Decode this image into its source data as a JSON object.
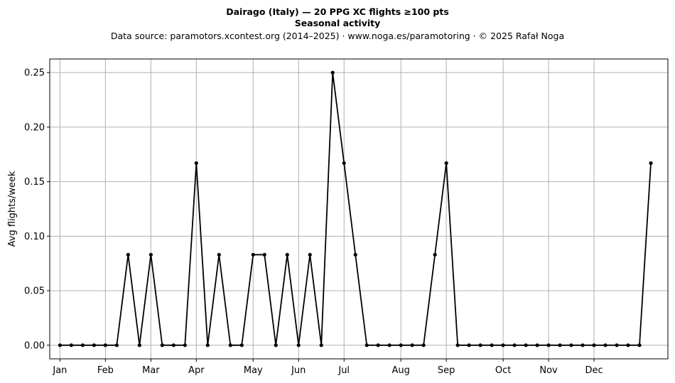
{
  "chart_data": {
    "type": "line",
    "title": "Dairago (Italy)  —  20 PPG XC flights ≥100 pts",
    "subtitle": "Seasonal activity",
    "source_line": "Data source: paramotors.xcontest.org (2014–2025)  ·  www.noga.es/paramotoring  ·  © 2025 Rafał Noga",
    "xlabel": "",
    "ylabel": "Avg flights/week",
    "xlim": [
      -0.9,
      53.5
    ],
    "ylim": [
      -0.0125,
      0.2625
    ],
    "grid": true,
    "x_ticks": [
      {
        "label": "Jan",
        "x": 0
      },
      {
        "label": "Feb",
        "x": 4
      },
      {
        "label": "Mar",
        "x": 8
      },
      {
        "label": "Apr",
        "x": 12
      },
      {
        "label": "May",
        "x": 17
      },
      {
        "label": "Jun",
        "x": 21
      },
      {
        "label": "Jul",
        "x": 25
      },
      {
        "label": "Aug",
        "x": 30
      },
      {
        "label": "Sep",
        "x": 34
      },
      {
        "label": "Oct",
        "x": 39
      },
      {
        "label": "Nov",
        "x": 43
      },
      {
        "label": "Dec",
        "x": 47
      }
    ],
    "y_ticks": [
      {
        "label": "0.00",
        "y": 0
      },
      {
        "label": "0.05",
        "y": 0.05
      },
      {
        "label": "0.10",
        "y": 0.1
      },
      {
        "label": "0.15",
        "y": 0.15
      },
      {
        "label": "0.20",
        "y": 0.2
      },
      {
        "label": "0.25",
        "y": 0.25
      }
    ],
    "series": [
      {
        "color": "#000000",
        "x": [
          0,
          1,
          2,
          3,
          4,
          5,
          6,
          7,
          8,
          9,
          10,
          11,
          12,
          13,
          14,
          15,
          16,
          17,
          18,
          19,
          20,
          21,
          22,
          23,
          24,
          25,
          26,
          27,
          28,
          29,
          30,
          31,
          32,
          33,
          34,
          35,
          36,
          37,
          38,
          39,
          40,
          41,
          42,
          43,
          44,
          45,
          46,
          47,
          48,
          49,
          50,
          51,
          52
        ],
        "values": [
          0,
          0,
          0,
          0,
          0,
          0,
          0.083,
          0,
          0.083,
          0,
          0,
          0,
          0.167,
          0,
          0.083,
          0,
          0,
          0.083,
          0.083,
          0,
          0.083,
          0,
          0.083,
          0,
          0.25,
          0.167,
          0.083,
          0,
          0,
          0,
          0,
          0,
          0,
          0.083,
          0.167,
          0,
          0,
          0,
          0,
          0,
          0,
          0,
          0,
          0,
          0,
          0,
          0,
          0,
          0,
          0,
          0,
          0,
          0.167
        ]
      }
    ]
  }
}
